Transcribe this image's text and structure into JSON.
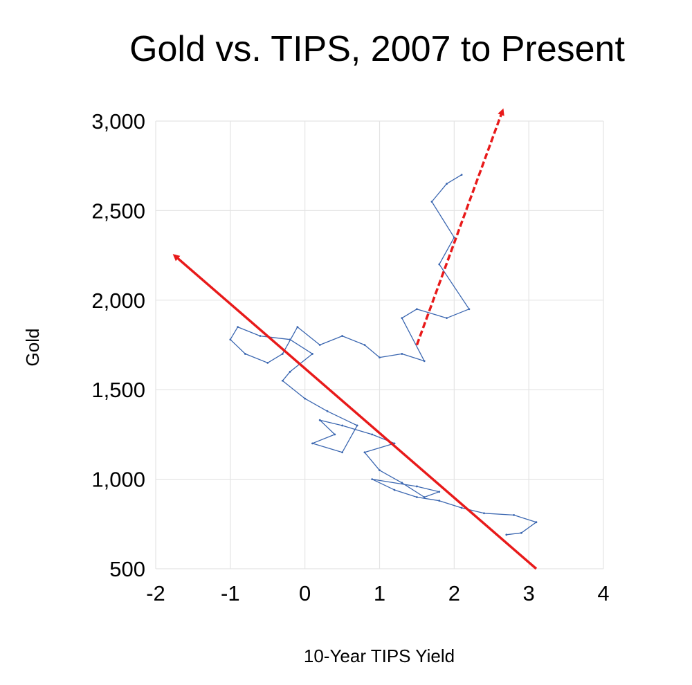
{
  "chart_data": {
    "type": "scatter",
    "title": "Gold vs. TIPS, 2007 to Present",
    "xlabel": "10-Year TIPS Yield",
    "ylabel": "Gold",
    "xlim": [
      -2,
      4
    ],
    "ylim": [
      500,
      3000
    ],
    "x_ticks": [
      "-2",
      "-1",
      "0",
      "1",
      "2",
      "3",
      "4"
    ],
    "y_ticks": [
      "500",
      "1,000",
      "1,500",
      "2,000",
      "2,500",
      "3,000"
    ],
    "grid": true,
    "series": [
      {
        "name": "Gold vs. 10-Year TIPS Yield",
        "color": "#3a66b0",
        "points": [
          [
            2.7,
            690
          ],
          [
            2.9,
            700
          ],
          [
            3.1,
            760
          ],
          [
            2.8,
            800
          ],
          [
            2.4,
            810
          ],
          [
            2.1,
            840
          ],
          [
            1.8,
            880
          ],
          [
            1.5,
            900
          ],
          [
            1.2,
            940
          ],
          [
            0.9,
            1000
          ],
          [
            1.5,
            960
          ],
          [
            1.8,
            930
          ],
          [
            1.6,
            900
          ],
          [
            1.3,
            980
          ],
          [
            1.0,
            1050
          ],
          [
            0.8,
            1150
          ],
          [
            1.2,
            1200
          ],
          [
            0.9,
            1250
          ],
          [
            0.5,
            1300
          ],
          [
            0.2,
            1330
          ],
          [
            0.4,
            1250
          ],
          [
            0.1,
            1200
          ],
          [
            0.5,
            1150
          ],
          [
            0.7,
            1300
          ],
          [
            0.3,
            1380
          ],
          [
            0.0,
            1450
          ],
          [
            -0.3,
            1550
          ],
          [
            -0.2,
            1600
          ],
          [
            0.1,
            1700
          ],
          [
            -0.2,
            1780
          ],
          [
            -0.6,
            1800
          ],
          [
            -0.9,
            1850
          ],
          [
            -1.0,
            1780
          ],
          [
            -0.8,
            1700
          ],
          [
            -0.5,
            1650
          ],
          [
            -0.3,
            1700
          ],
          [
            -0.1,
            1850
          ],
          [
            0.2,
            1750
          ],
          [
            0.5,
            1800
          ],
          [
            0.8,
            1750
          ],
          [
            1.0,
            1680
          ],
          [
            1.3,
            1700
          ],
          [
            1.6,
            1660
          ],
          [
            1.3,
            1900
          ],
          [
            1.5,
            1950
          ],
          [
            1.9,
            1900
          ],
          [
            2.2,
            1950
          ],
          [
            1.8,
            2200
          ],
          [
            2.0,
            2350
          ],
          [
            1.7,
            2550
          ],
          [
            1.9,
            2650
          ],
          [
            2.1,
            2700
          ]
        ]
      }
    ],
    "annotations": [
      {
        "type": "arrow",
        "style": "solid",
        "color": "#e81a1a",
        "from": [
          3.1,
          500
        ],
        "to": [
          -1.75,
          2250
        ]
      },
      {
        "type": "arrow",
        "style": "dashed",
        "color": "#e81a1a",
        "from": [
          1.5,
          1750
        ],
        "to": [
          2.65,
          3060
        ]
      }
    ]
  }
}
